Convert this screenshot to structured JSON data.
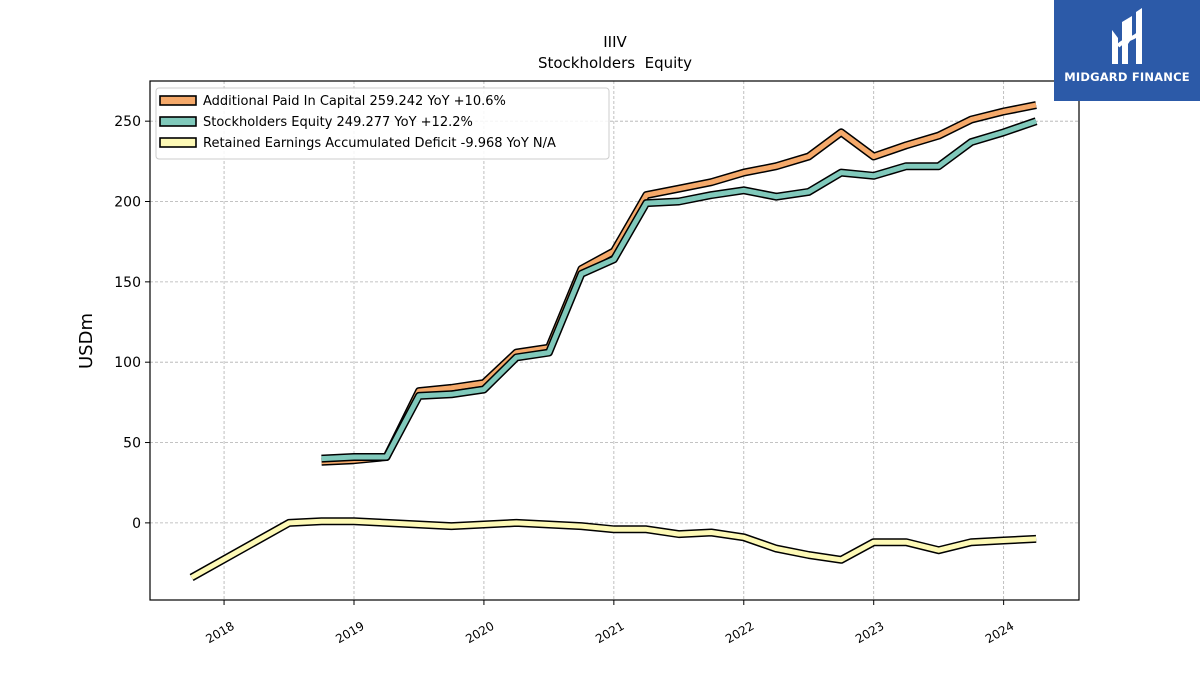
{
  "chart_data": {
    "type": "line",
    "title": "IIIV",
    "subtitle": "Stockholders  Equity",
    "ylabel": "USDm",
    "xlabel": "",
    "ylim": [
      -48,
      275
    ],
    "xlim": [
      2017.43,
      2024.58
    ],
    "yticks": [
      0,
      50,
      100,
      150,
      200,
      250
    ],
    "xticks": [
      2018,
      2019,
      2020,
      2021,
      2022,
      2023,
      2024
    ],
    "grid": true,
    "legend_position": "top-left",
    "series": [
      {
        "name": "Additional Paid In Capital  259.242 YoY +10.6%",
        "color": "#f5a96a",
        "x": [
          2018.75,
          2019.0,
          2019.25,
          2019.5,
          2019.75,
          2020.0,
          2020.25,
          2020.5,
          2020.75,
          2021.0,
          2021.25,
          2021.5,
          2021.75,
          2022.0,
          2022.25,
          2022.5,
          2022.75,
          2023.0,
          2023.25,
          2023.5,
          2023.75,
          2024.0,
          2024.25
        ],
        "y": [
          38,
          39,
          41,
          82,
          84,
          87,
          106,
          109,
          158,
          169,
          204,
          208,
          212,
          218,
          222,
          228,
          243,
          228,
          235,
          241,
          251,
          256,
          260
        ]
      },
      {
        "name": "Stockholders Equity  249.277 YoY +12.2%",
        "color": "#80c9bb",
        "x": [
          2018.75,
          2019.0,
          2019.25,
          2019.5,
          2019.75,
          2020.0,
          2020.25,
          2020.5,
          2020.75,
          2021.0,
          2021.25,
          2021.5,
          2021.75,
          2022.0,
          2022.25,
          2022.5,
          2022.75,
          2023.0,
          2023.25,
          2023.5,
          2023.75,
          2024.0,
          2024.25
        ],
        "y": [
          40,
          41,
          41,
          79,
          80,
          83,
          103,
          106,
          155,
          164,
          199,
          200,
          204,
          207,
          203,
          206,
          218,
          216,
          222,
          222,
          237,
          243,
          250
        ]
      },
      {
        "name": "Retained Earnings Accumulated Deficit  -9.968 YoY N/A",
        "color": "#fdf9b6",
        "x": [
          2017.75,
          2018.5,
          2018.75,
          2019.0,
          2019.25,
          2019.5,
          2019.75,
          2020.0,
          2020.25,
          2020.5,
          2020.75,
          2021.0,
          2021.25,
          2021.5,
          2021.75,
          2022.0,
          2022.25,
          2022.5,
          2022.75,
          2023.0,
          2023.25,
          2023.5,
          2023.75,
          2024.0,
          2024.25
        ],
        "y": [
          -34,
          0,
          1,
          1,
          0,
          -1,
          -2,
          -1,
          0,
          -1,
          -2,
          -4,
          -4,
          -7,
          -6,
          -9,
          -16,
          -20,
          -23,
          -12,
          -12,
          -17,
          -12,
          -11,
          -10
        ]
      }
    ]
  },
  "logo": {
    "text": "MIDGARD FINANCE"
  }
}
